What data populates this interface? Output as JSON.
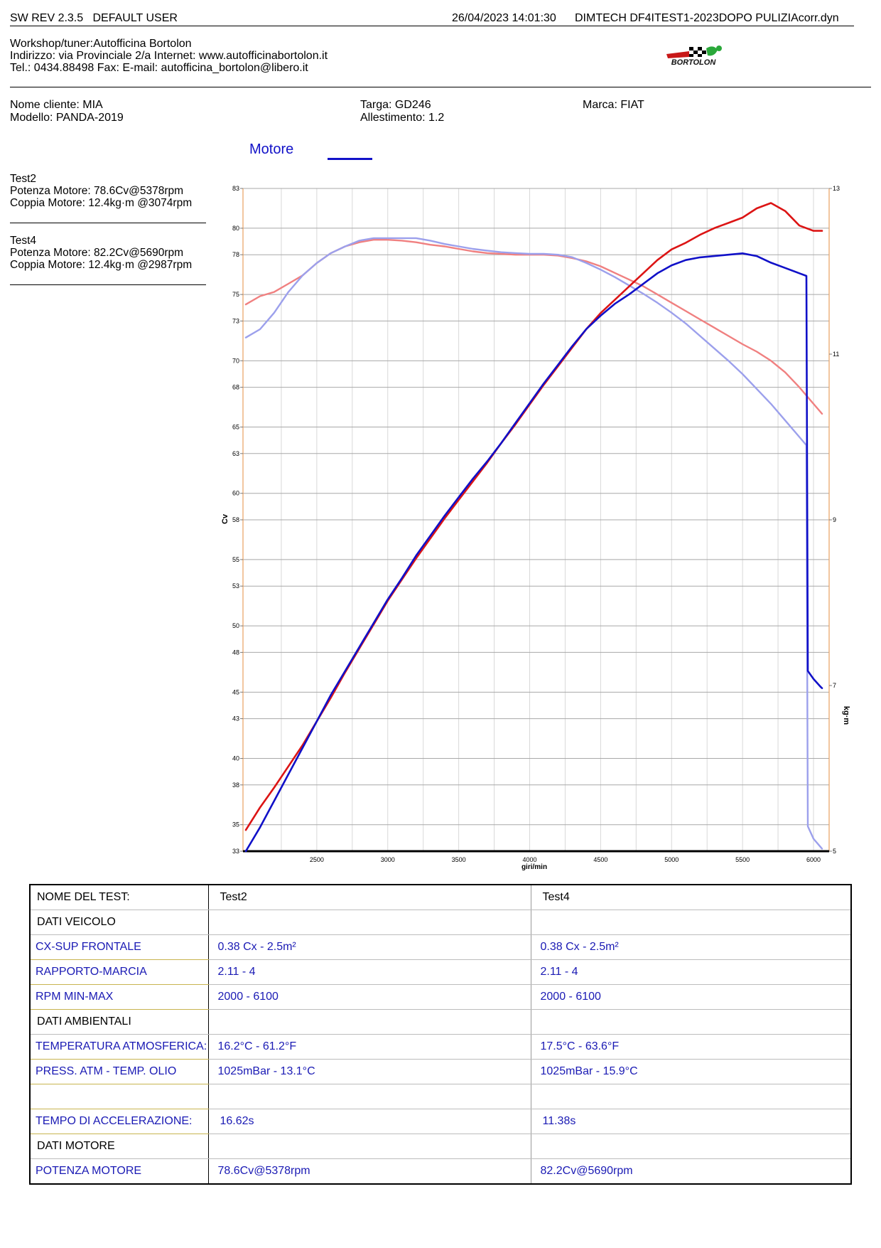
{
  "header": {
    "sw_rev": "SW REV 2.3.5",
    "user": "DEFAULT USER",
    "datetime": "26/04/2023 14:01:30",
    "file": "DIMTECH DF4ITEST1-2023DOPO PULIZIAcorr.dyn"
  },
  "workshop": {
    "line1": "Workshop/tuner:Autofficina Bortolon",
    "line2": "Indirizzo: via Provinciale 2/a Internet: www.autofficinabortolon.it",
    "line3": "Tel.: 0434.88498 Fax:  E-mail: autofficina_bortolon@libero.it",
    "logo_text": "BORTOLON"
  },
  "customer": {
    "nome": "Nome cliente: MIA",
    "modello": "Modello: PANDA-2019",
    "targa": "Targa: GD246",
    "allestimento": "Allestimento: 1.2",
    "marca": "Marca: FIAT"
  },
  "legend": {
    "label": "Motore",
    "color": "#1212c8"
  },
  "tests_summary": [
    {
      "name": "Test2",
      "power": "Potenza Motore: 78.6Cv@5378rpm",
      "torque": "Coppia Motore: 12.4kg·m @3074rpm"
    },
    {
      "name": "Test4",
      "power": "Potenza Motore: 82.2Cv@5690rpm",
      "torque": "Coppia Motore: 12.4kg·m @2987rpm"
    }
  ],
  "chart_data": {
    "type": "line",
    "xlabel": "giri/min",
    "ylabel": "Cv",
    "y2label": "kg·m",
    "xlim": [
      1980,
      6110
    ],
    "ylim": [
      33,
      83
    ],
    "y2lim": [
      5,
      13
    ],
    "x_ticks": [
      2500,
      3000,
      3500,
      4000,
      4500,
      5000,
      5500,
      6000
    ],
    "y_ticks": [
      33,
      35,
      38,
      40,
      43,
      45,
      48,
      50,
      53,
      55,
      58,
      60,
      63,
      65,
      68,
      70,
      73,
      75,
      78,
      80,
      83
    ],
    "y2_ticks": [
      5,
      7,
      9,
      11,
      13
    ],
    "grid": true,
    "colors": {
      "power_test2": "#1010c8",
      "power_test4": "#dc1414",
      "torque_test2": "#9ca0ec",
      "torque_test4": "#f08080"
    },
    "series": [
      {
        "name": "Test2",
        "quantity": "power",
        "axis": "left",
        "x": [
          2000,
          2100,
          2200,
          2300,
          2400,
          2500,
          2600,
          2700,
          2800,
          2900,
          3000,
          3100,
          3200,
          3300,
          3400,
          3500,
          3600,
          3700,
          3800,
          3900,
          4000,
          4100,
          4200,
          4300,
          4400,
          4500,
          4600,
          4700,
          4800,
          4900,
          5000,
          5100,
          5200,
          5300,
          5400,
          5500,
          5600,
          5700,
          5800,
          5900,
          5950,
          5960,
          6000,
          6050,
          6060
        ],
        "y": [
          33.0,
          34.8,
          36.8,
          38.8,
          40.8,
          42.8,
          44.8,
          46.6,
          48.4,
          50.2,
          52.0,
          53.6,
          55.3,
          56.8,
          58.3,
          59.7,
          61.1,
          62.4,
          63.8,
          65.3,
          66.8,
          68.3,
          69.7,
          71.1,
          72.4,
          73.4,
          74.3,
          75.0,
          75.8,
          76.6,
          77.2,
          77.6,
          77.8,
          77.9,
          78.0,
          78.1,
          77.9,
          77.4,
          77.0,
          76.6,
          76.4,
          46.6,
          46.0,
          45.4,
          45.3
        ]
      },
      {
        "name": "Test4",
        "quantity": "power",
        "axis": "left",
        "x": [
          2000,
          2100,
          2200,
          2300,
          2400,
          2500,
          2600,
          2700,
          2800,
          2900,
          3000,
          3100,
          3200,
          3300,
          3400,
          3500,
          3600,
          3700,
          3800,
          3900,
          4000,
          4100,
          4200,
          4300,
          4400,
          4500,
          4600,
          4700,
          4800,
          4900,
          5000,
          5100,
          5200,
          5300,
          5400,
          5500,
          5600,
          5700,
          5800,
          5900,
          6000,
          6050,
          6060
        ],
        "y": [
          34.6,
          36.3,
          37.8,
          39.4,
          41.0,
          42.8,
          44.6,
          46.5,
          48.3,
          50.1,
          51.9,
          53.5,
          55.1,
          56.6,
          58.1,
          59.5,
          60.9,
          62.3,
          63.8,
          65.2,
          66.7,
          68.2,
          69.6,
          71.0,
          72.4,
          73.6,
          74.6,
          75.6,
          76.6,
          77.6,
          78.4,
          78.9,
          79.5,
          80.0,
          80.4,
          80.8,
          81.5,
          81.9,
          81.3,
          80.2,
          79.8,
          79.8,
          79.8
        ]
      },
      {
        "name": "Test2",
        "quantity": "torque",
        "axis": "right",
        "x": [
          2000,
          2100,
          2200,
          2300,
          2400,
          2500,
          2600,
          2700,
          2800,
          2900,
          3000,
          3100,
          3200,
          3300,
          3400,
          3500,
          3600,
          3700,
          3800,
          3900,
          4000,
          4100,
          4200,
          4300,
          4400,
          4500,
          4600,
          4700,
          4800,
          4900,
          5000,
          5100,
          5200,
          5300,
          5400,
          5500,
          5600,
          5700,
          5800,
          5900,
          5950,
          5960,
          6000,
          6050,
          6060
        ],
        "y": [
          11.2,
          11.3,
          11.5,
          11.75,
          11.95,
          12.1,
          12.22,
          12.3,
          12.37,
          12.4,
          12.4,
          12.4,
          12.4,
          12.37,
          12.33,
          12.3,
          12.27,
          12.25,
          12.23,
          12.22,
          12.21,
          12.21,
          12.2,
          12.17,
          12.1,
          12.02,
          11.93,
          11.83,
          11.73,
          11.62,
          11.5,
          11.37,
          11.22,
          11.07,
          10.92,
          10.76,
          10.58,
          10.4,
          10.2,
          10.0,
          9.9,
          5.3,
          5.15,
          5.05,
          5.03
        ]
      },
      {
        "name": "Test4",
        "quantity": "torque",
        "axis": "right",
        "x": [
          2000,
          2100,
          2200,
          2300,
          2400,
          2500,
          2600,
          2700,
          2800,
          2900,
          3000,
          3100,
          3200,
          3300,
          3400,
          3500,
          3600,
          3700,
          3800,
          3900,
          4000,
          4100,
          4200,
          4300,
          4400,
          4500,
          4600,
          4700,
          4800,
          4900,
          5000,
          5100,
          5200,
          5300,
          5400,
          5500,
          5600,
          5700,
          5800,
          5900,
          6000,
          6050,
          6060
        ],
        "y": [
          11.6,
          11.7,
          11.75,
          11.85,
          11.95,
          12.1,
          12.22,
          12.3,
          12.35,
          12.38,
          12.38,
          12.37,
          12.35,
          12.32,
          12.3,
          12.27,
          12.24,
          12.22,
          12.21,
          12.2,
          12.2,
          12.2,
          12.19,
          12.16,
          12.12,
          12.06,
          11.98,
          11.9,
          11.82,
          11.72,
          11.62,
          11.52,
          11.42,
          11.32,
          11.22,
          11.12,
          11.03,
          10.92,
          10.78,
          10.6,
          10.4,
          10.3,
          10.28
        ]
      }
    ]
  },
  "table": {
    "rows": [
      [
        "NOME DEL TEST:",
        "Test2",
        "Test4"
      ],
      [
        "DATI VEICOLO",
        "",
        ""
      ],
      [
        "CX-SUP FRONTALE",
        "0.38 Cx - 2.5m²",
        "0.38 Cx - 2.5m²"
      ],
      [
        "RAPPORTO-MARCIA",
        "2.11 - 4",
        "2.11 - 4"
      ],
      [
        "RPM MIN-MAX",
        "2000 - 6100",
        "2000 - 6100"
      ],
      [
        "DATI AMBIENTALI",
        "",
        ""
      ],
      [
        "TEMPERATURA ATMOSFERICA:",
        "16.2°C - 61.2°F",
        "17.5°C - 63.6°F"
      ],
      [
        "PRESS. ATM - TEMP. OLIO",
        "1025mBar - 13.1°C",
        "1025mBar - 15.9°C"
      ],
      [
        "",
        "",
        ""
      ],
      [
        "TEMPO DI ACCELERAZIONE:",
        " 16.62s",
        " 11.38s"
      ],
      [
        "DATI MOTORE",
        "",
        ""
      ],
      [
        "POTENZA MOTORE",
        "78.6Cv@5378rpm",
        "82.2Cv@5690rpm"
      ]
    ]
  }
}
